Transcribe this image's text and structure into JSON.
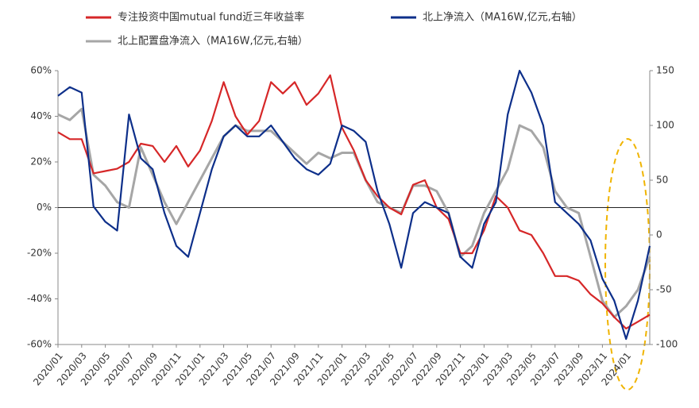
{
  "chart_data": {
    "type": "line",
    "categories": [
      "2020/01",
      null,
      "2020/03",
      null,
      "2020/05",
      null,
      "2020/07",
      null,
      "2020/09",
      null,
      "2020/11",
      null,
      "2021/01",
      null,
      "2021/03",
      null,
      "2021/05",
      null,
      "2021/07",
      null,
      "2021/09",
      null,
      "2021/11",
      null,
      "2022/01",
      null,
      "2022/03",
      null,
      "2022/05",
      null,
      "2022/07",
      null,
      "2022/09",
      null,
      "2022/11",
      null,
      "2023/01",
      null,
      "2023/03",
      null,
      "2023/05",
      null,
      "2023/07",
      null,
      "2023/09",
      null,
      "2023/11",
      null,
      "2024/01",
      null,
      null
    ],
    "series": [
      {
        "name": "专注投资中国mutual fund近三年收益率",
        "color": "#d62728",
        "axis": "y",
        "values": [
          33,
          30,
          30,
          15,
          16,
          17,
          20,
          28,
          27,
          20,
          27,
          18,
          25,
          38,
          55,
          40,
          32,
          38,
          55,
          50,
          55,
          45,
          50,
          58,
          35,
          25,
          12,
          5,
          0,
          -3,
          10,
          12,
          0,
          -5,
          -20,
          -20,
          -10,
          5,
          0,
          -10,
          -12,
          -20,
          -30,
          -30,
          -32,
          -38,
          -42,
          -48,
          -53,
          -50,
          -47
        ]
      },
      {
        "name": "北上净流入（MA16W,亿元,右轴）",
        "color": "#0d2f8a",
        "axis": "y2",
        "values": [
          127,
          135,
          130,
          26,
          12,
          4,
          110,
          70,
          60,
          20,
          -10,
          -20,
          20,
          60,
          90,
          100,
          90,
          90,
          100,
          85,
          70,
          60,
          55,
          65,
          100,
          95,
          85,
          40,
          10,
          -30,
          20,
          30,
          25,
          20,
          -20,
          -30,
          10,
          30,
          110,
          150,
          130,
          100,
          30,
          20,
          10,
          -5,
          -40,
          -60,
          -95,
          -60,
          -10
        ]
      },
      {
        "name": "北上配置盘净流入（MA16W,亿元,右轴）",
        "color": "#a6a6a6",
        "axis": "y2",
        "values": [
          110,
          105,
          115,
          55,
          45,
          30,
          25,
          80,
          55,
          30,
          10,
          30,
          50,
          70,
          90,
          100,
          95,
          95,
          95,
          85,
          75,
          65,
          75,
          70,
          75,
          75,
          50,
          30,
          25,
          20,
          45,
          45,
          40,
          20,
          -20,
          -10,
          20,
          40,
          60,
          100,
          95,
          80,
          40,
          25,
          20,
          -20,
          -60,
          -75,
          -65,
          -50,
          -20
        ]
      }
    ],
    "ylim": [
      -60,
      60
    ],
    "yticks": [
      {
        "value": -60,
        "label": "-60%"
      },
      {
        "value": -40,
        "label": "-40%"
      },
      {
        "value": -20,
        "label": "-20%"
      },
      {
        "value": 0,
        "label": "0%"
      },
      {
        "value": 20,
        "label": "20%"
      },
      {
        "value": 40,
        "label": "40%"
      },
      {
        "value": 60,
        "label": "60%"
      }
    ],
    "y2lim": [
      -100,
      150
    ],
    "y2ticks": [
      -100,
      -50,
      0,
      50,
      100,
      150
    ]
  }
}
